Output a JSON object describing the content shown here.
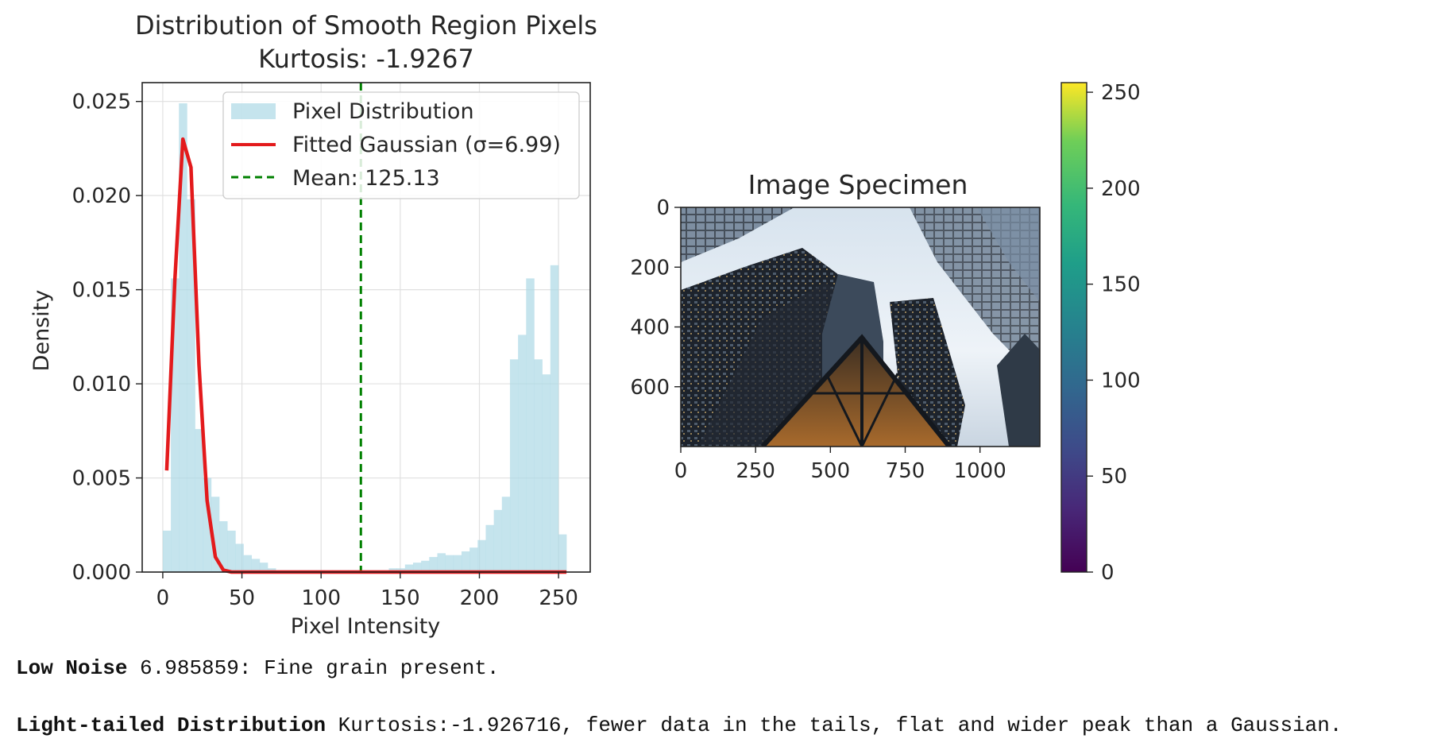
{
  "histogram_panel": {
    "title_line1": "Distribution of Smooth Region Pixels",
    "title_line2": "Kurtosis: -1.9267",
    "xlabel": "Pixel Intensity",
    "ylabel": "Density",
    "x_ticks": [
      "0",
      "50",
      "100",
      "150",
      "200",
      "250"
    ],
    "y_ticks": [
      "0.000",
      "0.005",
      "0.010",
      "0.015",
      "0.020",
      "0.025"
    ],
    "legend": {
      "hist": "Pixel Distribution",
      "fit": "Fitted Gaussian (σ=6.99)",
      "mean": "Mean: 125.13"
    }
  },
  "image_panel": {
    "title": "Image Specimen",
    "y_ticks": [
      "0",
      "200",
      "400",
      "600"
    ],
    "x_ticks": [
      "0",
      "250",
      "500",
      "750",
      "1000"
    ]
  },
  "colorbar": {
    "ticks": [
      "0",
      "50",
      "100",
      "150",
      "200",
      "250"
    ]
  },
  "notes": {
    "noise_label": "Low Noise",
    "noise_text": " 6.985859: Fine grain present.",
    "dist_label": "Light-tailed Distribution",
    "dist_text": " Kurtosis:-1.926716, fewer data in the tails, flat and wider peak than a Gaussian."
  },
  "colors": {
    "hist": "#add8e6",
    "fit": "#e31a1c",
    "mean": "#008000",
    "grid": "#e0e0e0"
  },
  "chart_data": [
    {
      "type": "bar",
      "title": "Distribution of Smooth Region Pixels\nKurtosis: -1.9267",
      "xlabel": "Pixel Intensity",
      "ylabel": "Density",
      "xlim": [
        -13,
        270
      ],
      "ylim": [
        0,
        0.026
      ],
      "grid": true,
      "legend_position": "top-right",
      "bin_width": 5.1,
      "series": [
        {
          "name": "Pixel Distribution",
          "kind": "histogram",
          "bin_starts": [
            0,
            5.1,
            10.2,
            15.3,
            20.4,
            25.5,
            30.6,
            35.7,
            40.8,
            45.9,
            51,
            56.1,
            61.2,
            66.3,
            71.4,
            76.5,
            81.6,
            86.7,
            91.8,
            96.9,
            102,
            107.1,
            112.2,
            117.3,
            122.4,
            127.5,
            132.6,
            137.7,
            142.8,
            147.9,
            153,
            158.1,
            163.2,
            168.3,
            173.4,
            178.5,
            183.6,
            188.7,
            193.8,
            198.9,
            204,
            209.1,
            214.2,
            219.3,
            224.4,
            229.5,
            234.6,
            239.7,
            244.8,
            249.9
          ],
          "values": [
            0.0022,
            0.0156,
            0.0249,
            0.0198,
            0.0076,
            0.005,
            0.004,
            0.0027,
            0.0022,
            0.0015,
            0.0009,
            0.0007,
            0.0005,
            0.0002,
            0.0001,
            0.0001,
            0.0001,
            0.0001,
            0.0001,
            0.0001,
            0.0001,
            0.0001,
            0.0001,
            0.0001,
            0.0001,
            0.0001,
            0.0001,
            0.0001,
            0.0002,
            0.0002,
            0.0004,
            0.0005,
            0.0006,
            0.0008,
            0.001,
            0.0009,
            0.0009,
            0.0011,
            0.0013,
            0.0017,
            0.0025,
            0.0033,
            0.004,
            0.0113,
            0.0126,
            0.0156,
            0.0113,
            0.0105,
            0.0163,
            0.002
          ]
        },
        {
          "name": "Fitted Gaussian (σ=6.99)",
          "kind": "line",
          "x": [
            2.5,
            7.6,
            12.7,
            17.8,
            22.9,
            28.0,
            33.2,
            38.3,
            43.4,
            255
          ],
          "y": [
            0.0054,
            0.0155,
            0.023,
            0.0215,
            0.011,
            0.0038,
            0.0008,
            0.0001,
            0.0,
            0.0
          ]
        },
        {
          "name": "Mean: 125.13",
          "kind": "vline",
          "x": 125.13
        }
      ]
    },
    {
      "type": "heatmap",
      "title": "Image Specimen",
      "description": "photo",
      "xlim": [
        0,
        1200
      ],
      "ylim": [
        800,
        0
      ],
      "colorbar_range": [
        0,
        255
      ],
      "colormap": "viridis"
    }
  ]
}
